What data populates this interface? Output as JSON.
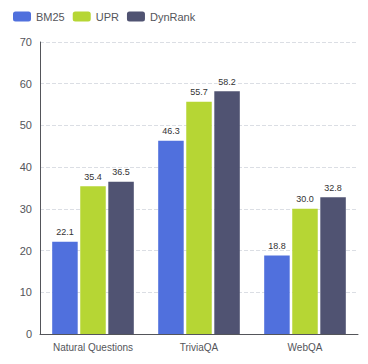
{
  "chart_data": {
    "type": "bar",
    "categories": [
      "Natural Questions",
      "TriviaQA",
      "WebQA"
    ],
    "series": [
      {
        "name": "BM25",
        "values": [
          22.1,
          46.3,
          18.8
        ],
        "value_labels": [
          "22.1",
          "46.3",
          "18.8"
        ]
      },
      {
        "name": "UPR",
        "values": [
          35.4,
          55.7,
          30.0
        ],
        "value_labels": [
          "35.4",
          "55.7",
          "30.0"
        ]
      },
      {
        "name": "DynRank",
        "values": [
          36.5,
          58.2,
          32.8
        ],
        "value_labels": [
          "36.5",
          "58.2",
          "32.8"
        ]
      }
    ],
    "ylim": [
      0,
      70
    ],
    "yticks": [
      0,
      10,
      20,
      30,
      40,
      50,
      60,
      70
    ],
    "grid": true,
    "legend": "upper left",
    "data_labels": true
  }
}
